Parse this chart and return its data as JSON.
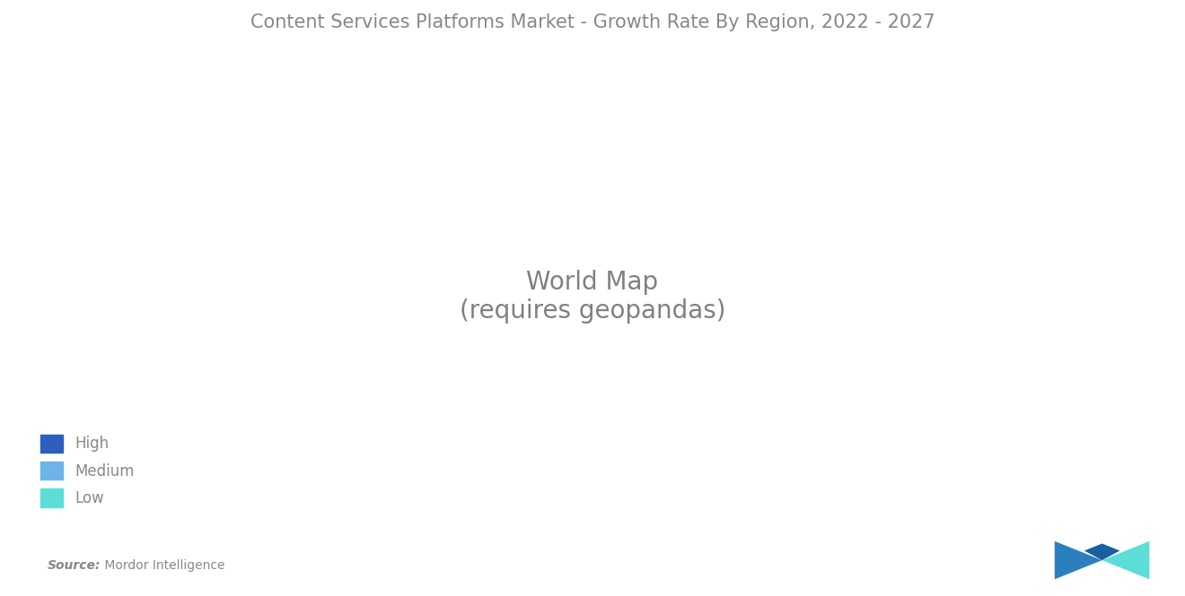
{
  "title": "Content Services Platforms Market - Growth Rate By Region, 2022 - 2027",
  "title_color": "#888888",
  "title_fontsize": 15,
  "background_color": "#ffffff",
  "source_text": "Source:",
  "source_detail": " Mordor Intelligence",
  "legend_items": [
    "High",
    "Medium",
    "Low"
  ],
  "legend_colors": [
    "#2E5FBE",
    "#6EB4E8",
    "#5DDDD8"
  ],
  "region_colors": {
    "North America": "#6EB4E8",
    "South America": "#6EB4E8",
    "Europe": "#6EB4E8",
    "Asia (High)": "#2E5FBE",
    "Asia (Medium)": "#6EB4E8",
    "Asia (Low)": "#5DDDD8",
    "Africa": "#5DDDD8",
    "Australia": "#2E5FBE",
    "Middle East": "#5DDDD8",
    "Greenland": "#999999",
    "Russia": "#999999"
  },
  "color_high": "#2E5FBE",
  "color_medium": "#6EB4E8",
  "color_low": "#5DDDD8",
  "color_na": "#999999"
}
